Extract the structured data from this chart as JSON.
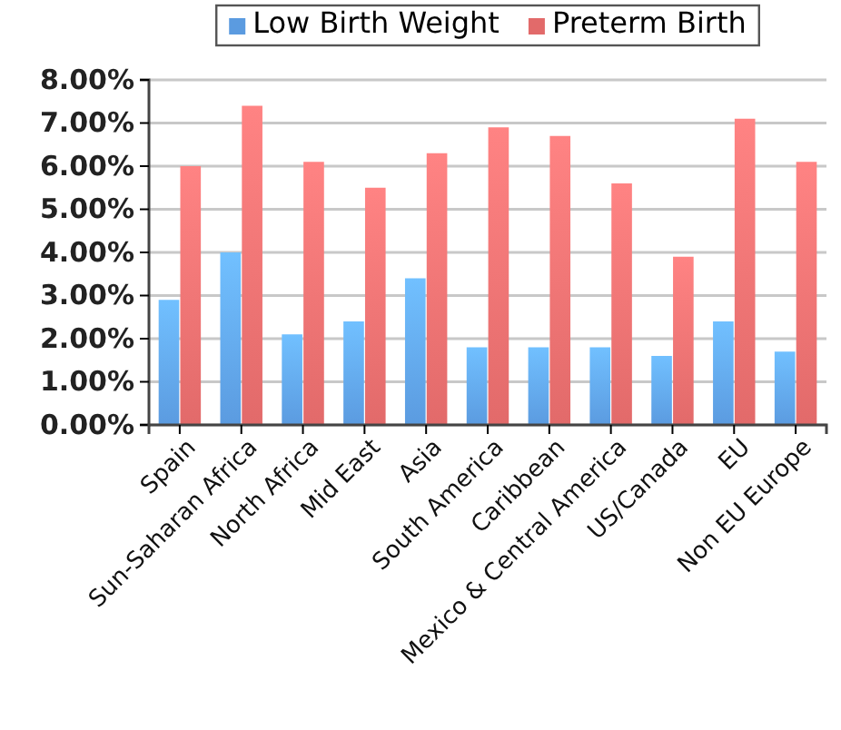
{
  "chart_data": {
    "type": "bar",
    "categories": [
      "Spain",
      "Sun-Saharan Africa",
      "North Africa",
      "Mid East",
      "Asia",
      "South America",
      "Caribbean",
      "Mexico & Central America",
      "US/Canada",
      "EU",
      "Non EU Europe"
    ],
    "series": [
      {
        "name": "Low Birth Weight",
        "color": "#5b9be0",
        "values": [
          2.9,
          4.0,
          2.1,
          2.4,
          3.4,
          1.8,
          1.8,
          1.8,
          1.6,
          2.4,
          1.7
        ]
      },
      {
        "name": "Preterm Birth",
        "color": "#e26a6a",
        "values": [
          6.0,
          7.4,
          6.1,
          5.5,
          6.3,
          6.9,
          6.7,
          5.6,
          3.9,
          7.1,
          6.1
        ]
      }
    ],
    "ylim": [
      0,
      8
    ],
    "yticks": [
      {
        "value": 0,
        "label": "0.00%"
      },
      {
        "value": 1,
        "label": "1.00%"
      },
      {
        "value": 2,
        "label": "2.00%"
      },
      {
        "value": 3,
        "label": "3.00%"
      },
      {
        "value": 4,
        "label": "4.00%"
      },
      {
        "value": 5,
        "label": "5.00%"
      },
      {
        "value": 6,
        "label": "6.00%"
      },
      {
        "value": 7,
        "label": "7.00%"
      },
      {
        "value": 8,
        "label": "8.00%"
      }
    ],
    "grid": "y",
    "legend": "top"
  }
}
